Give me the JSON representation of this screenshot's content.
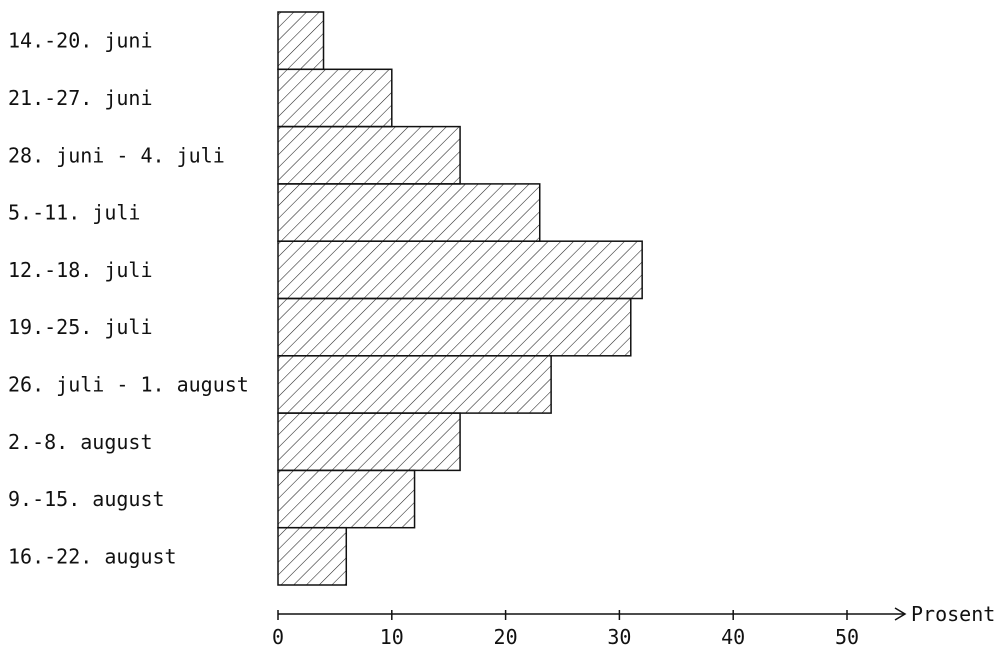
{
  "chart_data": {
    "type": "bar",
    "orientation": "horizontal",
    "categories": [
      "14.-20. juni",
      "21.-27. juni",
      "28. juni - 4. juli",
      "5.-11. juli",
      "12.-18. juli",
      "19.-25. juli",
      "26. juli - 1. august",
      "2.-8. august",
      "9.-15. august",
      "16.-22. august"
    ],
    "values": [
      4,
      10,
      16,
      23,
      32,
      31,
      24,
      16,
      12,
      6
    ],
    "xlabel": "Prosent",
    "ylabel": "",
    "xlim": [
      0,
      55
    ],
    "xticks": [
      "0",
      "10",
      "20",
      "30",
      "40",
      "50"
    ],
    "grid": false,
    "bar_fill": "diagonal-hatch",
    "colors": {
      "bar_stroke": "#111111",
      "hatch": "#222222",
      "axis": "#111111"
    }
  }
}
